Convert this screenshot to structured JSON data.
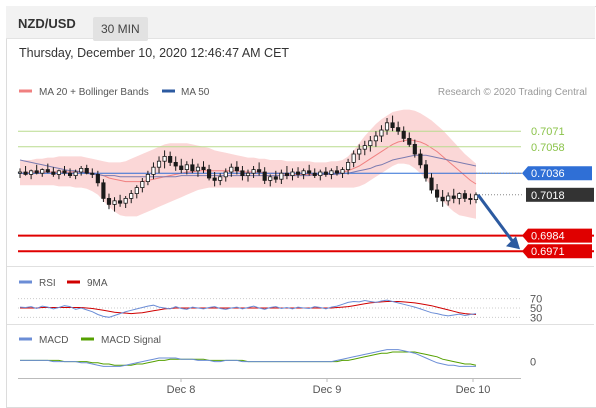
{
  "header": {
    "symbol": "NZD/USD",
    "timeframe": "30 MIN",
    "timestamp": "Thursday, December 10, 2020 12:46:47 AM CET"
  },
  "legend": {
    "ma20_bb": "MA 20 + Bollinger Bands",
    "ma50": "MA 50",
    "credit": "Research © 2020 Trading Central"
  },
  "colors": {
    "candle": "#1a1a1a",
    "bollinger_fill": "#fbd7d7",
    "ma20": "#f08080",
    "ma50": "#7b7bb0",
    "pivot": "#2f6fd6",
    "resistance": "#8bc34a",
    "support": "#e00000",
    "arrow": "#2c5aa0",
    "rsi": "#6b8dd6",
    "rsi_ma": "#d00000",
    "macd": "#6b8dd6",
    "macd_signal": "#55a000"
  },
  "chart_data": {
    "type": "candlestick",
    "ylim": [
      0.6962,
      0.7092
    ],
    "x_labels": [
      "Dec 8",
      "Dec 9",
      "Dec 10"
    ],
    "levels": [
      {
        "kind": "resistance",
        "value": 0.7071,
        "label": "0.7071"
      },
      {
        "kind": "resistance",
        "value": 0.7058,
        "label": "0.7058"
      },
      {
        "kind": "pivot",
        "value": 0.7036,
        "label": "0.7036"
      },
      {
        "kind": "current",
        "value": 0.7018,
        "label": "0.7018"
      },
      {
        "kind": "support",
        "value": 0.6984,
        "label": "0.6984"
      },
      {
        "kind": "support",
        "value": 0.6971,
        "label": "0.6971"
      }
    ],
    "candles": [
      [
        0.7036,
        0.704,
        0.7032,
        0.7037
      ],
      [
        0.7037,
        0.7042,
        0.7034,
        0.7035
      ],
      [
        0.7035,
        0.7039,
        0.7031,
        0.7038
      ],
      [
        0.7038,
        0.7043,
        0.7035,
        0.7036
      ],
      [
        0.7036,
        0.704,
        0.7033,
        0.7039
      ],
      [
        0.7039,
        0.7044,
        0.7036,
        0.7037
      ],
      [
        0.7037,
        0.7041,
        0.7033,
        0.7035
      ],
      [
        0.7035,
        0.7039,
        0.7031,
        0.7038
      ],
      [
        0.7038,
        0.7042,
        0.7034,
        0.7036
      ],
      [
        0.7036,
        0.704,
        0.7032,
        0.7034
      ],
      [
        0.7034,
        0.7039,
        0.7031,
        0.7037
      ],
      [
        0.7037,
        0.7042,
        0.7034,
        0.704
      ],
      [
        0.704,
        0.7043,
        0.7035,
        0.7036
      ],
      [
        0.7036,
        0.704,
        0.7032,
        0.7035
      ],
      [
        0.7035,
        0.7038,
        0.7025,
        0.7028
      ],
      [
        0.7028,
        0.7031,
        0.7012,
        0.7015
      ],
      [
        0.7015,
        0.7019,
        0.7006,
        0.701
      ],
      [
        0.701,
        0.7016,
        0.7004,
        0.7013
      ],
      [
        0.7013,
        0.7018,
        0.7008,
        0.7011
      ],
      [
        0.7011,
        0.7017,
        0.7007,
        0.7015
      ],
      [
        0.7015,
        0.7022,
        0.7011,
        0.7019
      ],
      [
        0.7019,
        0.7026,
        0.7015,
        0.7024
      ],
      [
        0.7024,
        0.7032,
        0.702,
        0.7029
      ],
      [
        0.7029,
        0.7038,
        0.7026,
        0.7035
      ],
      [
        0.7035,
        0.7045,
        0.7031,
        0.7041
      ],
      [
        0.7041,
        0.705,
        0.7036,
        0.7046
      ],
      [
        0.7046,
        0.7055,
        0.704,
        0.705
      ],
      [
        0.705,
        0.7054,
        0.7042,
        0.7045
      ],
      [
        0.7045,
        0.705,
        0.7038,
        0.7042
      ],
      [
        0.7042,
        0.7048,
        0.7036,
        0.7039
      ],
      [
        0.7039,
        0.7046,
        0.7035,
        0.7043
      ],
      [
        0.7043,
        0.7048,
        0.7036,
        0.7038
      ],
      [
        0.7038,
        0.7044,
        0.7033,
        0.7041
      ],
      [
        0.7041,
        0.7046,
        0.7036,
        0.7039
      ],
      [
        0.7039,
        0.7043,
        0.703,
        0.7032
      ],
      [
        0.7032,
        0.7037,
        0.7025,
        0.703
      ],
      [
        0.703,
        0.7036,
        0.7026,
        0.7033
      ],
      [
        0.7033,
        0.704,
        0.7029,
        0.7037
      ],
      [
        0.7037,
        0.7044,
        0.7033,
        0.7041
      ],
      [
        0.7041,
        0.7046,
        0.7035,
        0.7038
      ],
      [
        0.7038,
        0.7042,
        0.703,
        0.7034
      ],
      [
        0.7034,
        0.7039,
        0.7029,
        0.7036
      ],
      [
        0.7036,
        0.7042,
        0.7032,
        0.7039
      ],
      [
        0.7039,
        0.7045,
        0.7034,
        0.7037
      ],
      [
        0.7037,
        0.7041,
        0.7027,
        0.703
      ],
      [
        0.703,
        0.7035,
        0.7025,
        0.7033
      ],
      [
        0.7033,
        0.7038,
        0.7028,
        0.7031
      ],
      [
        0.7031,
        0.7039,
        0.7027,
        0.7036
      ],
      [
        0.7036,
        0.7042,
        0.7031,
        0.7034
      ],
      [
        0.7034,
        0.704,
        0.703,
        0.7037
      ],
      [
        0.7037,
        0.7041,
        0.7032,
        0.7035
      ],
      [
        0.7035,
        0.704,
        0.7031,
        0.7038
      ],
      [
        0.7038,
        0.7043,
        0.7034,
        0.7036
      ],
      [
        0.7036,
        0.704,
        0.7032,
        0.7034
      ],
      [
        0.7034,
        0.7039,
        0.703,
        0.7037
      ],
      [
        0.7037,
        0.7041,
        0.7033,
        0.7035
      ],
      [
        0.7035,
        0.704,
        0.7031,
        0.7038
      ],
      [
        0.7038,
        0.7042,
        0.7034,
        0.7036
      ],
      [
        0.7036,
        0.7041,
        0.7032,
        0.7039
      ],
      [
        0.7039,
        0.7048,
        0.7035,
        0.7045
      ],
      [
        0.7045,
        0.7055,
        0.7041,
        0.7052
      ],
      [
        0.7052,
        0.706,
        0.7047,
        0.7056
      ],
      [
        0.7056,
        0.7063,
        0.7051,
        0.7059
      ],
      [
        0.7059,
        0.7067,
        0.7054,
        0.7063
      ],
      [
        0.7063,
        0.7071,
        0.7058,
        0.7067
      ],
      [
        0.7067,
        0.7076,
        0.7062,
        0.7072
      ],
      [
        0.7072,
        0.7082,
        0.7068,
        0.7078
      ],
      [
        0.7078,
        0.7084,
        0.7071,
        0.7074
      ],
      [
        0.7074,
        0.7079,
        0.7068,
        0.7071
      ],
      [
        0.7071,
        0.7075,
        0.7062,
        0.7065
      ],
      [
        0.7065,
        0.707,
        0.7058,
        0.706
      ],
      [
        0.706,
        0.7064,
        0.7049,
        0.7052
      ],
      [
        0.7052,
        0.7056,
        0.704,
        0.7043
      ],
      [
        0.7043,
        0.7047,
        0.7029,
        0.7032
      ],
      [
        0.7032,
        0.7036,
        0.7019,
        0.7022
      ],
      [
        0.7022,
        0.7027,
        0.7012,
        0.7016
      ],
      [
        0.7016,
        0.7022,
        0.7008,
        0.7013
      ],
      [
        0.7013,
        0.702,
        0.7009,
        0.7017
      ],
      [
        0.7017,
        0.7023,
        0.7011,
        0.7015
      ],
      [
        0.7015,
        0.702,
        0.701,
        0.7019
      ],
      [
        0.7019,
        0.7022,
        0.7012,
        0.7015
      ],
      [
        0.7015,
        0.7019,
        0.701,
        0.7014
      ],
      [
        0.7014,
        0.702,
        0.7011,
        0.7018
      ]
    ],
    "bollinger": {
      "upper": [
        0.7046,
        0.7047,
        0.7047,
        0.7048,
        0.7048,
        0.7049,
        0.7049,
        0.705,
        0.705,
        0.705,
        0.705,
        0.705,
        0.7049,
        0.7048,
        0.7047,
        0.7046,
        0.7045,
        0.7045,
        0.7045,
        0.7046,
        0.7048,
        0.705,
        0.7052,
        0.7054,
        0.7056,
        0.7058,
        0.706,
        0.7061,
        0.7061,
        0.7061,
        0.7061,
        0.706,
        0.7059,
        0.7058,
        0.7057,
        0.7055,
        0.7054,
        0.7053,
        0.7052,
        0.7051,
        0.705,
        0.7049,
        0.7049,
        0.7048,
        0.7048,
        0.7047,
        0.7047,
        0.7047,
        0.7046,
        0.7046,
        0.7046,
        0.7046,
        0.7046,
        0.7045,
        0.7045,
        0.7045,
        0.7046,
        0.7046,
        0.7047,
        0.705,
        0.7055,
        0.7061,
        0.7067,
        0.7072,
        0.7077,
        0.7081,
        0.7084,
        0.7087,
        0.7088,
        0.7089,
        0.7089,
        0.7088,
        0.7086,
        0.7083,
        0.708,
        0.7076,
        0.7072,
        0.7067,
        0.7062,
        0.7057,
        0.7052,
        0.7048,
        0.7044
      ],
      "middle": [
        0.7036,
        0.7036,
        0.7037,
        0.7037,
        0.7037,
        0.7037,
        0.7037,
        0.7037,
        0.7037,
        0.7037,
        0.7037,
        0.7037,
        0.7037,
        0.7036,
        0.7035,
        0.7034,
        0.7032,
        0.7031,
        0.703,
        0.7029,
        0.7029,
        0.7029,
        0.7029,
        0.703,
        0.7031,
        0.7032,
        0.7033,
        0.7034,
        0.7035,
        0.7036,
        0.7037,
        0.7037,
        0.7038,
        0.7038,
        0.7038,
        0.7038,
        0.7038,
        0.7038,
        0.7038,
        0.7038,
        0.7037,
        0.7037,
        0.7037,
        0.7037,
        0.7036,
        0.7036,
        0.7036,
        0.7036,
        0.7035,
        0.7035,
        0.7035,
        0.7035,
        0.7035,
        0.7035,
        0.7035,
        0.7035,
        0.7036,
        0.7036,
        0.7037,
        0.7038,
        0.704,
        0.7042,
        0.7045,
        0.7048,
        0.7051,
        0.7054,
        0.7057,
        0.706,
        0.7062,
        0.7063,
        0.7064,
        0.7063,
        0.7062,
        0.706,
        0.7057,
        0.7054,
        0.705,
        0.7046,
        0.7042,
        0.7038,
        0.7034,
        0.703,
        0.7027
      ],
      "lower": [
        0.7026,
        0.7026,
        0.7026,
        0.7026,
        0.7026,
        0.7026,
        0.7026,
        0.7025,
        0.7025,
        0.7025,
        0.7024,
        0.7024,
        0.7023,
        0.7021,
        0.7018,
        0.7013,
        0.7008,
        0.7004,
        0.7001,
        0.7,
        0.7,
        0.7,
        0.7002,
        0.7004,
        0.7006,
        0.7008,
        0.701,
        0.7012,
        0.7014,
        0.7016,
        0.7018,
        0.702,
        0.7022,
        0.7023,
        0.7024,
        0.7024,
        0.7024,
        0.7024,
        0.7024,
        0.7024,
        0.7024,
        0.7024,
        0.7024,
        0.7024,
        0.7024,
        0.7024,
        0.7024,
        0.7024,
        0.7024,
        0.7024,
        0.7024,
        0.7024,
        0.7024,
        0.7024,
        0.7024,
        0.7024,
        0.7024,
        0.7024,
        0.7024,
        0.7024,
        0.7024,
        0.7025,
        0.7027,
        0.703,
        0.7033,
        0.7036,
        0.7039,
        0.7042,
        0.7044,
        0.7044,
        0.7043,
        0.704,
        0.7036,
        0.7031,
        0.7025,
        0.7019,
        0.7013,
        0.7008,
        0.7004,
        0.7001,
        0.7,
        0.6999,
        0.6998
      ]
    },
    "ma50": [
      0.7047,
      0.7046,
      0.7045,
      0.7044,
      0.7043,
      0.7042,
      0.7041,
      0.704,
      0.7039,
      0.7038,
      0.7038,
      0.7037,
      0.7036,
      0.7035,
      0.7035,
      0.7034,
      0.7034,
      0.7034,
      0.7033,
      0.7033,
      0.7033,
      0.7033,
      0.7033,
      0.7033,
      0.7033,
      0.7033,
      0.7033,
      0.7033,
      0.7033,
      0.7034,
      0.7034,
      0.7034,
      0.7034,
      0.7034,
      0.7034,
      0.7034,
      0.7034,
      0.7034,
      0.7034,
      0.7034,
      0.7034,
      0.7034,
      0.7034,
      0.7034,
      0.7034,
      0.7034,
      0.7034,
      0.7034,
      0.7034,
      0.7034,
      0.7034,
      0.7034,
      0.7034,
      0.7035,
      0.7035,
      0.7035,
      0.7035,
      0.7035,
      0.7036,
      0.7036,
      0.7037,
      0.7038,
      0.7039,
      0.704,
      0.7042,
      0.7043,
      0.7045,
      0.7047,
      0.7048,
      0.7049,
      0.705,
      0.7051,
      0.7051,
      0.7051,
      0.705,
      0.7049,
      0.7048,
      0.7047,
      0.7046,
      0.7045,
      0.7044,
      0.7043,
      0.7042
    ],
    "rsi": {
      "name": "RSI",
      "ma_name": "9MA",
      "ticks": [
        {
          "value": 70,
          "label": "70"
        },
        {
          "value": 50,
          "label": "50"
        },
        {
          "value": 30,
          "label": "30"
        }
      ],
      "ylim": [
        20,
        80
      ],
      "rsi": [
        52,
        51,
        53,
        49,
        54,
        52,
        48,
        51,
        55,
        53,
        47,
        50,
        46,
        42,
        36,
        32,
        30,
        34,
        38,
        42,
        45,
        48,
        51,
        54,
        56,
        52,
        50,
        48,
        53,
        49,
        47,
        52,
        50,
        48,
        51,
        53,
        49,
        47,
        50,
        52,
        48,
        51,
        54,
        50,
        47,
        51,
        53,
        49,
        51,
        48,
        52,
        50,
        49,
        53,
        51,
        48,
        52,
        54,
        58,
        62,
        64,
        63,
        66,
        64,
        62,
        65,
        67,
        64,
        61,
        58,
        55,
        52,
        48,
        44,
        40,
        38,
        35,
        33,
        35,
        37,
        34,
        36,
        38
      ],
      "ma": [
        50,
        50,
        50,
        50,
        51,
        51,
        51,
        51,
        51,
        51,
        51,
        51,
        50,
        49,
        47,
        45,
        43,
        41,
        40,
        39,
        38,
        39,
        40,
        42,
        44,
        46,
        48,
        49,
        50,
        50,
        50,
        50,
        50,
        50,
        50,
        50,
        50,
        50,
        50,
        50,
        50,
        50,
        50,
        50,
        50,
        50,
        50,
        50,
        50,
        50,
        50,
        50,
        50,
        50,
        50,
        50,
        50,
        51,
        52,
        53,
        55,
        57,
        59,
        61,
        62,
        63,
        64,
        64,
        64,
        63,
        62,
        61,
        59,
        57,
        55,
        52,
        49,
        46,
        43,
        40,
        38,
        37,
        36
      ]
    },
    "macd": {
      "name": "MACD",
      "signal_name": "MACD Signal",
      "ticks": [
        {
          "value": 0,
          "label": "0"
        }
      ],
      "ylim": [
        -0.0012,
        0.0013
      ],
      "macd": [
        0.0001,
        0.0001,
        0.0001,
        0.0001,
        0.0001,
        0.0001,
        0.0,
        0.0,
        0.0,
        0.0,
        0.0,
        -0.0001,
        -0.0001,
        -0.0002,
        -0.0003,
        -0.0004,
        -0.0004,
        -0.0004,
        -0.0004,
        -0.0003,
        -0.0002,
        -0.0001,
        0.0,
        0.0001,
        0.0002,
        0.0003,
        0.0003,
        0.0003,
        0.0003,
        0.0002,
        0.0002,
        0.0002,
        0.0001,
        0.0001,
        0.0001,
        0.0,
        0.0,
        0.0001,
        0.0001,
        0.0001,
        0.0,
        0.0,
        0.0,
        0.0,
        0.0,
        0.0,
        0.0,
        0.0,
        0.0,
        0.0,
        0.0,
        0.0,
        0.0,
        0.0,
        0.0,
        0.0,
        0.0,
        0.0001,
        0.0002,
        0.0003,
        0.0004,
        0.0005,
        0.0006,
        0.0007,
        0.0008,
        0.0009,
        0.001,
        0.001,
        0.001,
        0.0009,
        0.0008,
        0.0007,
        0.0005,
        0.0003,
        0.0001,
        -0.0001,
        -0.0002,
        -0.0003,
        -0.0003,
        -0.0004,
        -0.0004,
        -0.0004,
        -0.0004
      ],
      "signal": [
        0.0001,
        0.0001,
        0.0001,
        0.0001,
        0.0001,
        0.0001,
        0.0001,
        0.0001,
        0.0,
        0.0,
        0.0,
        0.0,
        0.0,
        -0.0001,
        -0.0001,
        -0.0002,
        -0.0002,
        -0.0003,
        -0.0003,
        -0.0003,
        -0.0003,
        -0.0002,
        -0.0002,
        -0.0001,
        0.0,
        0.0001,
        0.0001,
        0.0002,
        0.0002,
        0.0002,
        0.0002,
        0.0002,
        0.0002,
        0.0002,
        0.0001,
        0.0001,
        0.0001,
        0.0001,
        0.0001,
        0.0001,
        0.0001,
        0.0,
        0.0,
        0.0,
        0.0,
        0.0,
        0.0,
        0.0,
        0.0,
        0.0,
        0.0,
        0.0,
        0.0,
        0.0,
        0.0,
        0.0,
        0.0,
        0.0,
        0.0001,
        0.0001,
        0.0002,
        0.0003,
        0.0004,
        0.0005,
        0.0006,
        0.0007,
        0.0007,
        0.0008,
        0.0008,
        0.0008,
        0.0008,
        0.0008,
        0.0007,
        0.0006,
        0.0005,
        0.0004,
        0.0002,
        0.0001,
        0.0,
        -0.0001,
        -0.0002,
        -0.0002,
        -0.0003
      ]
    }
  }
}
